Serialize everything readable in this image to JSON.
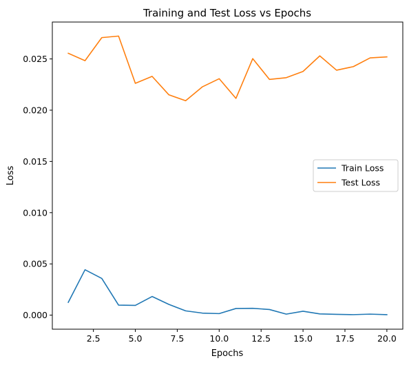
{
  "chart_data": {
    "type": "line",
    "title": "Training and Test Loss vs Epochs",
    "xlabel": "Epochs",
    "ylabel": "Loss",
    "xlim": [
      0.05,
      20.95
    ],
    "ylim": [
      -0.00137,
      0.0286
    ],
    "x_ticks": [
      2.5,
      5.0,
      7.5,
      10.0,
      12.5,
      15.0,
      17.5,
      20.0
    ],
    "x_tick_labels": [
      "2.5",
      "5.0",
      "7.5",
      "10.0",
      "12.5",
      "15.0",
      "17.5",
      "20.0"
    ],
    "y_ticks": [
      0.0,
      0.005,
      0.01,
      0.015,
      0.02,
      0.025
    ],
    "y_tick_labels": [
      "0.000",
      "0.005",
      "0.010",
      "0.015",
      "0.020",
      "0.025"
    ],
    "grid": false,
    "legend": "center-right",
    "x": [
      1,
      2,
      3,
      4,
      5,
      6,
      7,
      8,
      9,
      10,
      11,
      12,
      13,
      14,
      15,
      16,
      17,
      18,
      19,
      20
    ],
    "series": [
      {
        "name": "Train Loss",
        "color": "#1f77b4",
        "values": [
          0.00125,
          0.00443,
          0.00358,
          0.00098,
          0.00095,
          0.00182,
          0.00105,
          0.00042,
          0.0002,
          0.00015,
          0.00065,
          0.00067,
          0.00055,
          0.0001,
          0.00038,
          0.00012,
          8e-05,
          5e-05,
          0.0001,
          5e-05
        ]
      },
      {
        "name": "Test Loss",
        "color": "#ff7f0e",
        "values": [
          0.02555,
          0.02483,
          0.02708,
          0.02723,
          0.02262,
          0.0233,
          0.0215,
          0.02092,
          0.02228,
          0.02307,
          0.02115,
          0.02503,
          0.023,
          0.02317,
          0.02378,
          0.0253,
          0.0239,
          0.02425,
          0.0251,
          0.0252
        ]
      }
    ]
  }
}
